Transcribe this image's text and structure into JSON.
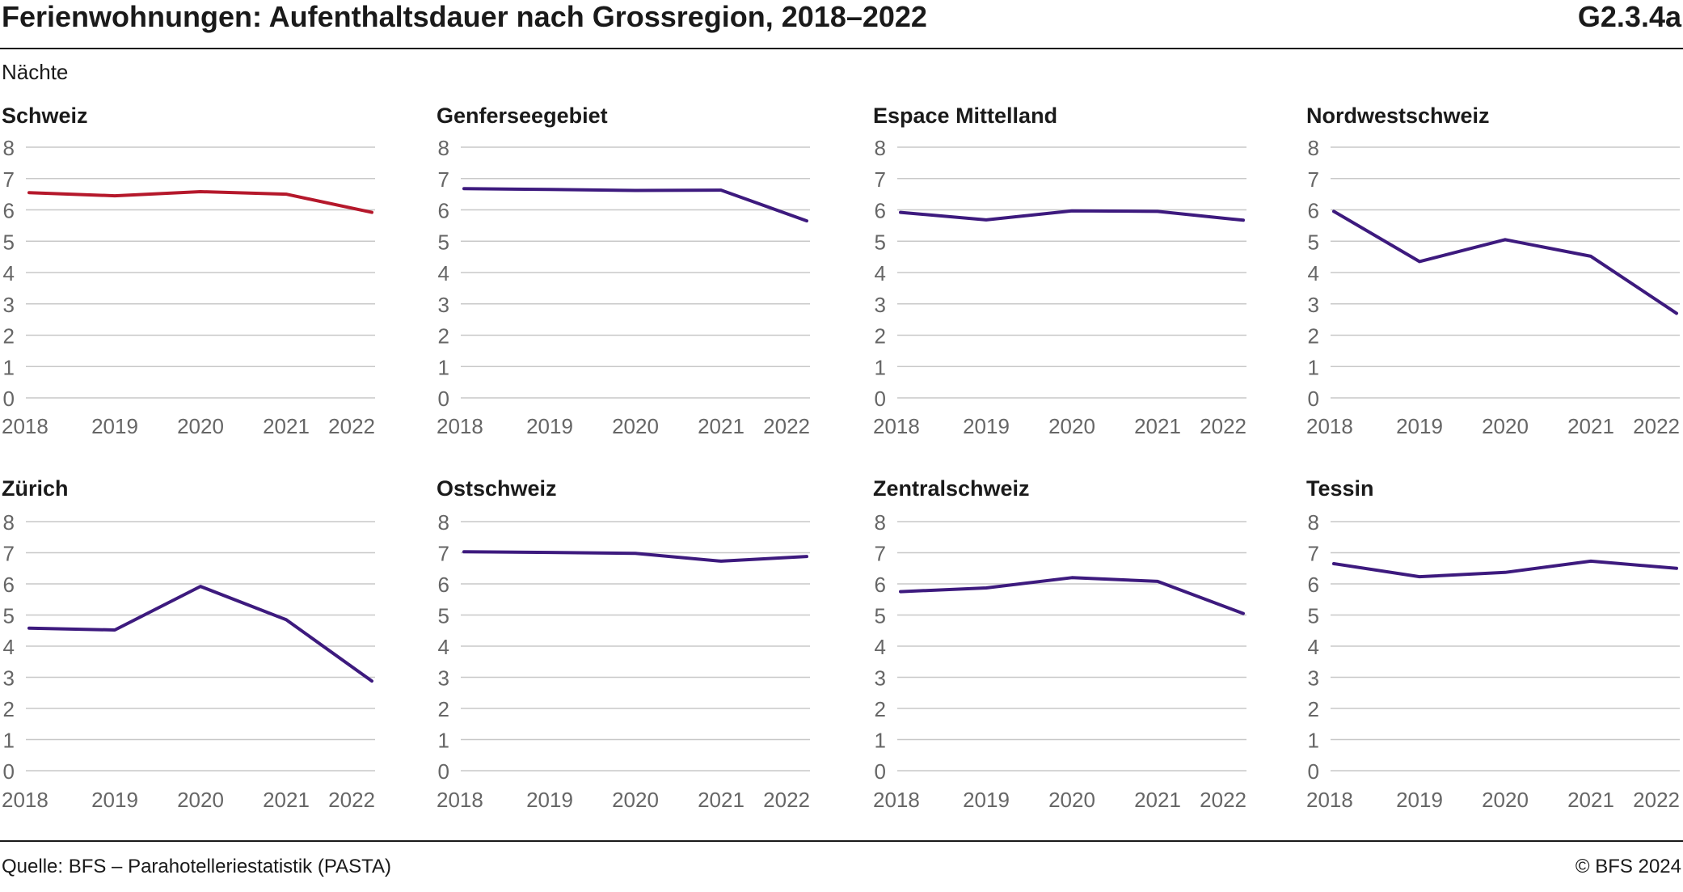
{
  "title": "Ferienwohnungen: Aufenthaltsdauer nach Grossregion, 2018–2022",
  "code": "G2.3.4a",
  "unit": "Nächte",
  "source": "Quelle: BFS – Parahotelleriestatistik (PASTA)",
  "copyright": "© BFS 2024",
  "colors": {
    "highlight": "#b5182b",
    "series": "#3d1a7e",
    "grid": "#c8c8c8",
    "text": "#1a1a1a",
    "tick": "#666666"
  },
  "chart_data": [
    {
      "type": "line",
      "title": "Schweiz",
      "color": "#b5182b",
      "x": [
        "2018",
        "2019",
        "2020",
        "2021",
        "2022"
      ],
      "values": [
        6.55,
        6.45,
        6.58,
        6.5,
        5.92
      ],
      "ylim": [
        0,
        8
      ],
      "yticks": [
        0,
        1,
        2,
        3,
        4,
        5,
        6,
        7,
        8
      ],
      "grid": true
    },
    {
      "type": "line",
      "title": "Genferseegebiet",
      "color": "#3d1a7e",
      "x": [
        "2018",
        "2019",
        "2020",
        "2021",
        "2022"
      ],
      "values": [
        6.68,
        6.65,
        6.62,
        6.63,
        5.65
      ],
      "ylim": [
        0,
        8
      ],
      "yticks": [
        0,
        1,
        2,
        3,
        4,
        5,
        6,
        7,
        8
      ],
      "grid": true
    },
    {
      "type": "line",
      "title": "Espace Mittelland",
      "color": "#3d1a7e",
      "x": [
        "2018",
        "2019",
        "2020",
        "2021",
        "2022"
      ],
      "values": [
        5.92,
        5.68,
        5.97,
        5.95,
        5.67
      ],
      "ylim": [
        0,
        8
      ],
      "yticks": [
        0,
        1,
        2,
        3,
        4,
        5,
        6,
        7,
        8
      ],
      "grid": true
    },
    {
      "type": "line",
      "title": "Nordwestschweiz",
      "color": "#3d1a7e",
      "x": [
        "2018",
        "2019",
        "2020",
        "2021",
        "2022"
      ],
      "values": [
        5.95,
        4.35,
        5.05,
        4.52,
        2.7
      ],
      "ylim": [
        0,
        8
      ],
      "yticks": [
        0,
        1,
        2,
        3,
        4,
        5,
        6,
        7,
        8
      ],
      "grid": true
    },
    {
      "type": "line",
      "title": "Zürich",
      "color": "#3d1a7e",
      "x": [
        "2018",
        "2019",
        "2020",
        "2021",
        "2022"
      ],
      "values": [
        4.58,
        4.52,
        5.92,
        4.85,
        2.88
      ],
      "ylim": [
        0,
        8
      ],
      "yticks": [
        0,
        1,
        2,
        3,
        4,
        5,
        6,
        7,
        8
      ],
      "grid": true
    },
    {
      "type": "line",
      "title": "Ostschweiz",
      "color": "#3d1a7e",
      "x": [
        "2018",
        "2019",
        "2020",
        "2021",
        "2022"
      ],
      "values": [
        7.03,
        7.01,
        6.98,
        6.73,
        6.88
      ],
      "ylim": [
        0,
        8
      ],
      "yticks": [
        0,
        1,
        2,
        3,
        4,
        5,
        6,
        7,
        8
      ],
      "grid": true
    },
    {
      "type": "line",
      "title": "Zentralschweiz",
      "color": "#3d1a7e",
      "x": [
        "2018",
        "2019",
        "2020",
        "2021",
        "2022"
      ],
      "values": [
        5.75,
        5.87,
        6.2,
        6.08,
        5.05
      ],
      "ylim": [
        0,
        8
      ],
      "yticks": [
        0,
        1,
        2,
        3,
        4,
        5,
        6,
        7,
        8
      ],
      "grid": true
    },
    {
      "type": "line",
      "title": "Tessin",
      "color": "#3d1a7e",
      "x": [
        "2018",
        "2019",
        "2020",
        "2021",
        "2022"
      ],
      "values": [
        6.65,
        6.23,
        6.37,
        6.73,
        6.5
      ],
      "ylim": [
        0,
        8
      ],
      "yticks": [
        0,
        1,
        2,
        3,
        4,
        5,
        6,
        7,
        8
      ],
      "grid": true
    }
  ]
}
